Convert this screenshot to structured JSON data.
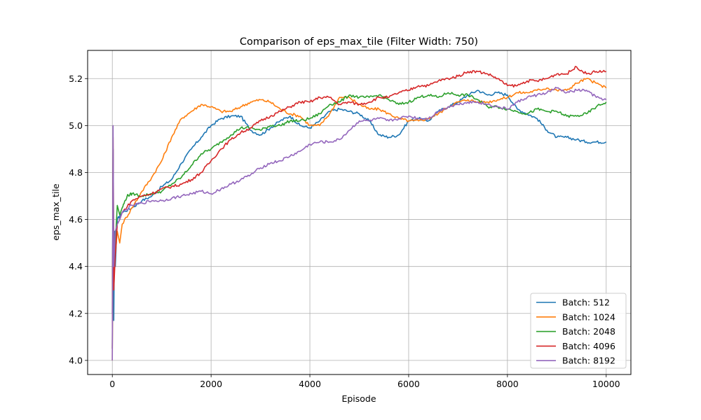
{
  "chart_data": {
    "type": "line",
    "title": "Comparison of eps_max_tile (Filter Width: 750)",
    "xlabel": "Episode",
    "ylabel": "eps_max_tile",
    "xlim": [
      -500,
      10500
    ],
    "ylim": [
      3.94,
      5.32
    ],
    "grid": true,
    "legend": "lower-right",
    "x_ticks": [
      0,
      2000,
      4000,
      6000,
      8000,
      10000
    ],
    "x_tick_labels": [
      "0",
      "2000",
      "4000",
      "6000",
      "8000",
      "10000"
    ],
    "y_ticks": [
      4.0,
      4.2,
      4.4,
      4.6,
      4.8,
      5.0,
      5.2
    ],
    "y_tick_labels": [
      "4.0",
      "4.2",
      "4.4",
      "4.6",
      "4.8",
      "5.0",
      "5.2"
    ],
    "series": [
      {
        "name": "Batch: 512",
        "color": "#1f77b4",
        "points": [
          [
            0,
            4.2
          ],
          [
            15,
            4.9
          ],
          [
            30,
            4.17
          ],
          [
            45,
            4.55
          ],
          [
            60,
            4.4
          ],
          [
            100,
            4.6
          ],
          [
            200,
            4.63
          ],
          [
            400,
            4.65
          ],
          [
            600,
            4.68
          ],
          [
            800,
            4.7
          ],
          [
            1000,
            4.74
          ],
          [
            1200,
            4.77
          ],
          [
            1400,
            4.84
          ],
          [
            1600,
            4.9
          ],
          [
            1800,
            4.95
          ],
          [
            2000,
            5.0
          ],
          [
            2200,
            5.03
          ],
          [
            2400,
            5.04
          ],
          [
            2600,
            5.04
          ],
          [
            2800,
            4.98
          ],
          [
            3000,
            4.96
          ],
          [
            3200,
            4.99
          ],
          [
            3400,
            5.02
          ],
          [
            3600,
            5.04
          ],
          [
            3800,
            5.0
          ],
          [
            4000,
            4.99
          ],
          [
            4200,
            5.02
          ],
          [
            4400,
            5.06
          ],
          [
            4600,
            5.07
          ],
          [
            4800,
            5.06
          ],
          [
            5000,
            5.05
          ],
          [
            5200,
            5.02
          ],
          [
            5400,
            4.96
          ],
          [
            5600,
            4.95
          ],
          [
            5800,
            4.96
          ],
          [
            6000,
            5.02
          ],
          [
            6200,
            5.03
          ],
          [
            6400,
            5.02
          ],
          [
            6600,
            5.06
          ],
          [
            6800,
            5.08
          ],
          [
            7000,
            5.1
          ],
          [
            7200,
            5.13
          ],
          [
            7400,
            5.15
          ],
          [
            7600,
            5.13
          ],
          [
            7800,
            5.14
          ],
          [
            8000,
            5.13
          ],
          [
            8200,
            5.07
          ],
          [
            8400,
            5.05
          ],
          [
            8600,
            5.03
          ],
          [
            8800,
            4.98
          ],
          [
            9000,
            4.95
          ],
          [
            9200,
            4.95
          ],
          [
            9400,
            4.94
          ],
          [
            9600,
            4.93
          ],
          [
            9800,
            4.93
          ],
          [
            10000,
            4.93
          ]
        ]
      },
      {
        "name": "Batch: 1024",
        "color": "#ff7f0e",
        "points": [
          [
            0,
            4.0
          ],
          [
            15,
            4.95
          ],
          [
            30,
            4.5
          ],
          [
            60,
            4.45
          ],
          [
            100,
            4.55
          ],
          [
            150,
            4.5
          ],
          [
            200,
            4.58
          ],
          [
            400,
            4.65
          ],
          [
            600,
            4.72
          ],
          [
            800,
            4.78
          ],
          [
            1000,
            4.85
          ],
          [
            1200,
            4.95
          ],
          [
            1400,
            5.03
          ],
          [
            1600,
            5.06
          ],
          [
            1800,
            5.09
          ],
          [
            2000,
            5.08
          ],
          [
            2200,
            5.06
          ],
          [
            2400,
            5.06
          ],
          [
            2600,
            5.08
          ],
          [
            2800,
            5.1
          ],
          [
            3000,
            5.11
          ],
          [
            3200,
            5.1
          ],
          [
            3400,
            5.07
          ],
          [
            3600,
            5.05
          ],
          [
            3800,
            5.04
          ],
          [
            4000,
            5.0
          ],
          [
            4200,
            5.0
          ],
          [
            4400,
            5.05
          ],
          [
            4600,
            5.12
          ],
          [
            4800,
            5.12
          ],
          [
            5000,
            5.09
          ],
          [
            5200,
            5.07
          ],
          [
            5400,
            5.07
          ],
          [
            5600,
            5.05
          ],
          [
            5800,
            5.03
          ],
          [
            6000,
            5.02
          ],
          [
            6200,
            5.02
          ],
          [
            6400,
            5.03
          ],
          [
            6600,
            5.05
          ],
          [
            6800,
            5.08
          ],
          [
            7000,
            5.1
          ],
          [
            7200,
            5.11
          ],
          [
            7400,
            5.1
          ],
          [
            7600,
            5.1
          ],
          [
            7800,
            5.11
          ],
          [
            8000,
            5.12
          ],
          [
            8200,
            5.14
          ],
          [
            8400,
            5.14
          ],
          [
            8600,
            5.15
          ],
          [
            8800,
            5.16
          ],
          [
            9000,
            5.15
          ],
          [
            9200,
            5.15
          ],
          [
            9400,
            5.18
          ],
          [
            9600,
            5.2
          ],
          [
            9800,
            5.18
          ],
          [
            10000,
            5.16
          ]
        ]
      },
      {
        "name": "Batch: 2048",
        "color": "#2ca02c",
        "points": [
          [
            0,
            4.05
          ],
          [
            15,
            4.9
          ],
          [
            30,
            4.35
          ],
          [
            60,
            4.5
          ],
          [
            100,
            4.66
          ],
          [
            150,
            4.62
          ],
          [
            200,
            4.65
          ],
          [
            300,
            4.7
          ],
          [
            400,
            4.71
          ],
          [
            600,
            4.7
          ],
          [
            800,
            4.71
          ],
          [
            1000,
            4.72
          ],
          [
            1200,
            4.75
          ],
          [
            1400,
            4.78
          ],
          [
            1600,
            4.83
          ],
          [
            1800,
            4.88
          ],
          [
            2000,
            4.9
          ],
          [
            2200,
            4.93
          ],
          [
            2400,
            4.96
          ],
          [
            2600,
            4.99
          ],
          [
            2800,
            4.99
          ],
          [
            3000,
            4.98
          ],
          [
            3200,
            5.0
          ],
          [
            3400,
            5.0
          ],
          [
            3600,
            5.02
          ],
          [
            3800,
            5.02
          ],
          [
            4000,
            5.03
          ],
          [
            4200,
            5.05
          ],
          [
            4400,
            5.09
          ],
          [
            4600,
            5.1
          ],
          [
            4800,
            5.13
          ],
          [
            5000,
            5.12
          ],
          [
            5200,
            5.12
          ],
          [
            5400,
            5.13
          ],
          [
            5600,
            5.11
          ],
          [
            5800,
            5.09
          ],
          [
            6000,
            5.1
          ],
          [
            6200,
            5.12
          ],
          [
            6400,
            5.13
          ],
          [
            6600,
            5.12
          ],
          [
            6800,
            5.14
          ],
          [
            7000,
            5.13
          ],
          [
            7200,
            5.13
          ],
          [
            7400,
            5.11
          ],
          [
            7600,
            5.08
          ],
          [
            7800,
            5.08
          ],
          [
            8000,
            5.07
          ],
          [
            8200,
            5.06
          ],
          [
            8400,
            5.05
          ],
          [
            8600,
            5.07
          ],
          [
            8800,
            5.06
          ],
          [
            9000,
            5.06
          ],
          [
            9200,
            5.04
          ],
          [
            9400,
            5.04
          ],
          [
            9600,
            5.05
          ],
          [
            9800,
            5.08
          ],
          [
            10000,
            5.1
          ]
        ]
      },
      {
        "name": "Batch: 4096",
        "color": "#d62728",
        "points": [
          [
            0,
            4.05
          ],
          [
            15,
            4.9
          ],
          [
            30,
            4.3
          ],
          [
            60,
            4.45
          ],
          [
            100,
            4.58
          ],
          [
            150,
            4.6
          ],
          [
            200,
            4.63
          ],
          [
            400,
            4.68
          ],
          [
            600,
            4.7
          ],
          [
            800,
            4.71
          ],
          [
            1000,
            4.73
          ],
          [
            1200,
            4.74
          ],
          [
            1400,
            4.75
          ],
          [
            1600,
            4.77
          ],
          [
            1800,
            4.8
          ],
          [
            2000,
            4.85
          ],
          [
            2200,
            4.9
          ],
          [
            2400,
            4.94
          ],
          [
            2600,
            4.97
          ],
          [
            2800,
            4.99
          ],
          [
            3000,
            5.02
          ],
          [
            3200,
            5.04
          ],
          [
            3400,
            5.06
          ],
          [
            3600,
            5.08
          ],
          [
            3800,
            5.1
          ],
          [
            4000,
            5.1
          ],
          [
            4200,
            5.12
          ],
          [
            4400,
            5.12
          ],
          [
            4600,
            5.09
          ],
          [
            4800,
            5.1
          ],
          [
            5000,
            5.09
          ],
          [
            5200,
            5.1
          ],
          [
            5400,
            5.12
          ],
          [
            5600,
            5.12
          ],
          [
            5800,
            5.14
          ],
          [
            6000,
            5.15
          ],
          [
            6200,
            5.17
          ],
          [
            6400,
            5.17
          ],
          [
            6600,
            5.19
          ],
          [
            6800,
            5.2
          ],
          [
            7000,
            5.21
          ],
          [
            7200,
            5.23
          ],
          [
            7400,
            5.23
          ],
          [
            7600,
            5.22
          ],
          [
            7800,
            5.2
          ],
          [
            8000,
            5.17
          ],
          [
            8200,
            5.17
          ],
          [
            8400,
            5.19
          ],
          [
            8600,
            5.19
          ],
          [
            8800,
            5.2
          ],
          [
            9000,
            5.22
          ],
          [
            9200,
            5.22
          ],
          [
            9400,
            5.25
          ],
          [
            9600,
            5.22
          ],
          [
            9800,
            5.23
          ],
          [
            10000,
            5.23
          ]
        ]
      },
      {
        "name": "Batch: 8192",
        "color": "#9467bd",
        "points": [
          [
            0,
            4.0
          ],
          [
            15,
            5.0
          ],
          [
            30,
            4.4
          ],
          [
            60,
            4.55
          ],
          [
            100,
            4.58
          ],
          [
            150,
            4.6
          ],
          [
            200,
            4.63
          ],
          [
            400,
            4.66
          ],
          [
            600,
            4.67
          ],
          [
            800,
            4.68
          ],
          [
            1000,
            4.68
          ],
          [
            1200,
            4.69
          ],
          [
            1400,
            4.7
          ],
          [
            1600,
            4.71
          ],
          [
            1800,
            4.72
          ],
          [
            2000,
            4.71
          ],
          [
            2200,
            4.73
          ],
          [
            2400,
            4.75
          ],
          [
            2600,
            4.77
          ],
          [
            2800,
            4.79
          ],
          [
            3000,
            4.82
          ],
          [
            3200,
            4.84
          ],
          [
            3400,
            4.85
          ],
          [
            3600,
            4.87
          ],
          [
            3800,
            4.89
          ],
          [
            4000,
            4.92
          ],
          [
            4200,
            4.93
          ],
          [
            4400,
            4.93
          ],
          [
            4600,
            4.94
          ],
          [
            4800,
            4.98
          ],
          [
            5000,
            5.02
          ],
          [
            5200,
            5.02
          ],
          [
            5400,
            5.03
          ],
          [
            5600,
            5.02
          ],
          [
            5800,
            5.03
          ],
          [
            6000,
            5.04
          ],
          [
            6200,
            5.03
          ],
          [
            6400,
            5.03
          ],
          [
            6600,
            5.06
          ],
          [
            6800,
            5.08
          ],
          [
            7000,
            5.09
          ],
          [
            7200,
            5.1
          ],
          [
            7400,
            5.1
          ],
          [
            7600,
            5.09
          ],
          [
            7800,
            5.08
          ],
          [
            8000,
            5.07
          ],
          [
            8200,
            5.1
          ],
          [
            8400,
            5.12
          ],
          [
            8600,
            5.13
          ],
          [
            8800,
            5.14
          ],
          [
            9000,
            5.16
          ],
          [
            9200,
            5.14
          ],
          [
            9400,
            5.15
          ],
          [
            9600,
            5.15
          ],
          [
            9800,
            5.12
          ],
          [
            10000,
            5.11
          ]
        ]
      }
    ]
  }
}
